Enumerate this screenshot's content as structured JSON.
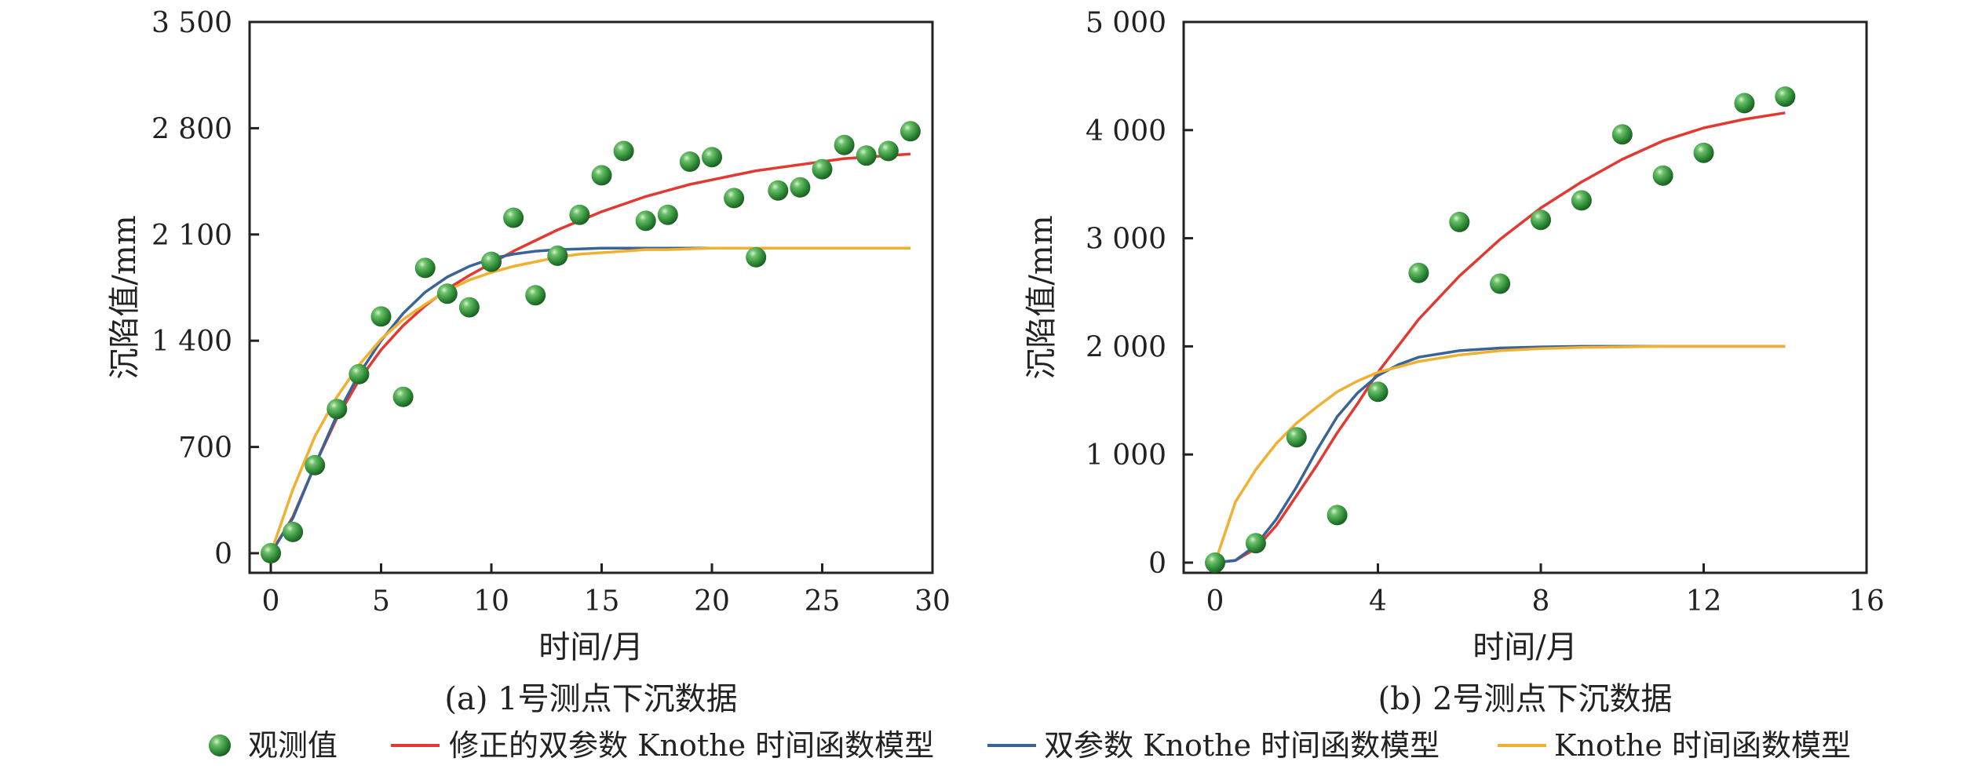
{
  "chart_data": [
    {
      "type": "line",
      "caption": "(a) 1号测点下沉数据",
      "xlabel": "时间/月",
      "ylabel": "沉陷值/mm",
      "xlim": [
        0,
        30
      ],
      "ylim": [
        0,
        3500
      ],
      "xticks": [
        0,
        5,
        10,
        15,
        20,
        25,
        30
      ],
      "xtick_labels": [
        "0",
        "5",
        "10",
        "15",
        "20",
        "25",
        "30"
      ],
      "yticks": [
        0,
        700,
        1400,
        2100,
        2800,
        3500
      ],
      "ytick_labels": [
        "0",
        "700",
        "1 400",
        "2 100",
        "2 800",
        "3 500"
      ],
      "series": [
        {
          "name": "观测值",
          "kind": "scatter",
          "color": "#3a9a3a",
          "x": [
            0,
            1,
            2,
            3,
            4,
            5,
            6,
            7,
            8,
            9,
            10,
            11,
            12,
            13,
            14,
            15,
            16,
            17,
            18,
            19,
            20,
            21,
            22,
            23,
            24,
            25,
            26,
            27,
            28,
            29
          ],
          "y": [
            0,
            140,
            580,
            950,
            1180,
            1560,
            1030,
            1880,
            1710,
            1620,
            1920,
            2210,
            1700,
            1960,
            2230,
            2490,
            2650,
            2190,
            2230,
            2580,
            2610,
            2340,
            1950,
            2390,
            2410,
            2530,
            2690,
            2620,
            2650,
            2780
          ]
        },
        {
          "name": "修正的双参数 Knothe 时间函数模型",
          "kind": "line",
          "color": "#e03a32",
          "x": [
            0,
            1,
            2,
            3,
            4,
            5,
            6,
            7,
            8,
            9,
            10,
            11,
            12,
            13,
            14,
            15,
            16,
            17,
            18,
            19,
            20,
            21,
            22,
            23,
            24,
            25,
            26,
            27,
            28,
            29
          ],
          "y": [
            0,
            240,
            580,
            890,
            1140,
            1340,
            1500,
            1630,
            1740,
            1830,
            1910,
            1990,
            2060,
            2130,
            2190,
            2250,
            2300,
            2350,
            2390,
            2430,
            2460,
            2490,
            2520,
            2540,
            2560,
            2580,
            2600,
            2610,
            2620,
            2630
          ]
        },
        {
          "name": "双参数 Knothe 时间函数模型",
          "kind": "line",
          "color": "#3a6496",
          "x": [
            0,
            1,
            2,
            3,
            4,
            5,
            6,
            7,
            8,
            9,
            10,
            11,
            12,
            13,
            14,
            15,
            16,
            17,
            18,
            19,
            20,
            21,
            22,
            23,
            24,
            25,
            26,
            27,
            28,
            29
          ],
          "y": [
            0,
            230,
            580,
            910,
            1180,
            1400,
            1580,
            1720,
            1820,
            1890,
            1940,
            1970,
            1990,
            2000,
            2005,
            2010,
            2010,
            2010,
            2010,
            2010,
            2010,
            2010,
            2010,
            2010,
            2010,
            2010,
            2010,
            2010,
            2010,
            2010
          ]
        },
        {
          "name": "Knothe 时间函数模型",
          "kind": "line",
          "color": "#f0b132",
          "x": [
            0,
            1,
            2,
            3,
            4,
            5,
            6,
            7,
            8,
            9,
            10,
            11,
            12,
            13,
            14,
            15,
            16,
            17,
            18,
            19,
            20,
            21,
            22,
            23,
            24,
            25,
            26,
            27,
            28,
            29
          ],
          "y": [
            0,
            420,
            770,
            1030,
            1240,
            1410,
            1540,
            1640,
            1730,
            1800,
            1850,
            1890,
            1920,
            1950,
            1970,
            1980,
            1990,
            2000,
            2000,
            2005,
            2010,
            2010,
            2010,
            2010,
            2010,
            2010,
            2010,
            2010,
            2010,
            2010
          ]
        }
      ]
    },
    {
      "type": "line",
      "caption": "(b) 2号测点下沉数据",
      "xlabel": "时间/月",
      "ylabel": "沉陷值/mm",
      "xlim": [
        0,
        16
      ],
      "ylim": [
        0,
        5000
      ],
      "xticks": [
        0,
        4,
        8,
        12,
        16
      ],
      "xtick_labels": [
        "0",
        "4",
        "8",
        "12",
        "16"
      ],
      "yticks": [
        0,
        1000,
        2000,
        3000,
        4000,
        5000
      ],
      "ytick_labels": [
        "0",
        "1 000",
        "2 000",
        "3 000",
        "4 000",
        "5 000"
      ],
      "series": [
        {
          "name": "观测值",
          "kind": "scatter",
          "color": "#3a9a3a",
          "x": [
            0,
            1,
            2,
            3,
            4,
            5,
            6,
            7,
            8,
            9,
            10,
            11,
            12,
            13,
            14
          ],
          "y": [
            0,
            180,
            1160,
            440,
            1580,
            2680,
            3150,
            2580,
            3170,
            3350,
            3960,
            3580,
            3790,
            4250,
            4310
          ]
        },
        {
          "name": "修正的双参数 Knothe 时间函数模型",
          "kind": "line",
          "color": "#e03a32",
          "x": [
            0,
            0.5,
            1,
            1.5,
            2,
            2.5,
            3,
            3.5,
            4,
            5,
            6,
            7,
            8,
            9,
            10,
            11,
            12,
            13,
            14
          ],
          "y": [
            0,
            20,
            130,
            340,
            620,
            900,
            1200,
            1470,
            1760,
            2250,
            2650,
            2990,
            3280,
            3520,
            3730,
            3900,
            4020,
            4100,
            4160
          ]
        },
        {
          "name": "双参数 Knothe 时间函数模型",
          "kind": "line",
          "color": "#3a6496",
          "x": [
            0,
            0.5,
            1,
            1.5,
            2,
            2.5,
            3,
            3.5,
            4,
            4.5,
            5,
            6,
            7,
            8,
            9,
            10,
            11,
            12,
            13,
            14
          ],
          "y": [
            0,
            20,
            160,
            400,
            700,
            1040,
            1350,
            1570,
            1730,
            1830,
            1900,
            1960,
            1985,
            1995,
            2000,
            2000,
            2000,
            2000,
            2000,
            2000
          ]
        },
        {
          "name": "Knothe 时间函数模型",
          "kind": "line",
          "color": "#f0b132",
          "x": [
            0,
            0.5,
            1,
            1.5,
            2,
            2.5,
            3,
            3.5,
            4,
            5,
            6,
            7,
            8,
            9,
            10,
            11,
            12,
            13,
            14
          ],
          "y": [
            0,
            560,
            860,
            1100,
            1290,
            1440,
            1580,
            1680,
            1760,
            1860,
            1920,
            1960,
            1980,
            1990,
            1995,
            2000,
            2000,
            2000,
            2000
          ]
        }
      ]
    }
  ],
  "legend": {
    "placement": "bottom",
    "items": [
      {
        "label": "观测值",
        "kind": "marker",
        "color": "#3a9a3a"
      },
      {
        "label": "修正的双参数 Knothe 时间函数模型",
        "kind": "line",
        "color": "#e03a32"
      },
      {
        "label": "双参数 Knothe 时间函数模型",
        "kind": "line",
        "color": "#3a6496"
      },
      {
        "label": "Knothe 时间函数模型",
        "kind": "line",
        "color": "#f0b132"
      }
    ]
  }
}
